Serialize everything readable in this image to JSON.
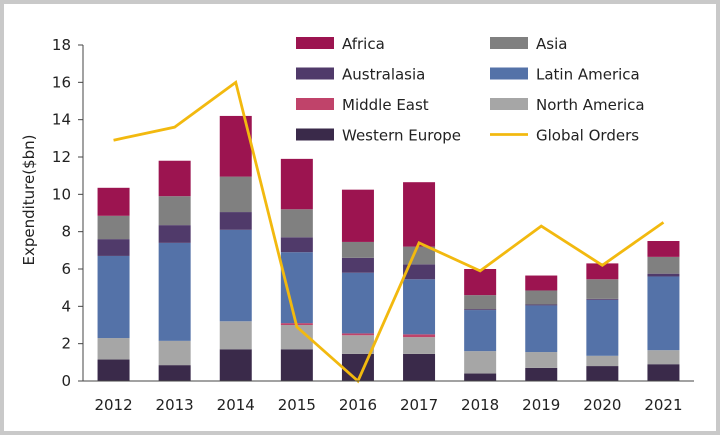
{
  "chart_data": {
    "type": "bar",
    "stacked": true,
    "title": "",
    "xlabel": "",
    "ylabel": "Expenditure($bn)",
    "ylim": [
      0,
      18
    ],
    "yticks": [
      0,
      2,
      4,
      6,
      8,
      10,
      12,
      14,
      16,
      18
    ],
    "grid": false,
    "legend_position": "top-right",
    "categories": [
      "2012",
      "2013",
      "2014",
      "2015",
      "2016",
      "2017",
      "2018",
      "2019",
      "2020",
      "2021"
    ],
    "series": [
      {
        "name": "Western Europe",
        "color": "#3a2a4a",
        "values": [
          1.15,
          0.85,
          1.7,
          1.7,
          1.45,
          1.45,
          0.4,
          0.7,
          0.8,
          0.9
        ]
      },
      {
        "name": "North America",
        "color": "#a6a6a6",
        "values": [
          1.15,
          1.3,
          1.5,
          1.3,
          1.0,
          0.9,
          1.2,
          0.85,
          0.55,
          0.75
        ]
      },
      {
        "name": "Middle East",
        "color": "#c0436a",
        "values": [
          0.0,
          0.0,
          0.0,
          0.1,
          0.1,
          0.15,
          0.0,
          0.0,
          0.0,
          0.0
        ]
      },
      {
        "name": "Latin America",
        "color": "#5472a8",
        "values": [
          4.4,
          5.25,
          4.9,
          3.8,
          3.25,
          2.95,
          2.2,
          2.5,
          3.0,
          3.95
        ]
      },
      {
        "name": "Australasia",
        "color": "#503a6a",
        "values": [
          0.9,
          0.95,
          0.95,
          0.8,
          0.8,
          0.8,
          0.05,
          0.05,
          0.05,
          0.15
        ]
      },
      {
        "name": "Asia",
        "color": "#808080",
        "values": [
          1.25,
          1.55,
          1.9,
          1.5,
          0.85,
          0.95,
          0.75,
          0.75,
          1.05,
          0.9
        ]
      },
      {
        "name": "Africa",
        "color": "#9c1450",
        "values": [
          1.5,
          1.9,
          3.25,
          2.7,
          2.8,
          3.45,
          1.4,
          0.8,
          0.85,
          0.85
        ]
      }
    ],
    "line_series": {
      "name": "Global Orders",
      "color": "#f2b90f",
      "values": [
        12.9,
        13.6,
        16.0,
        2.9,
        0.0,
        7.4,
        5.9,
        8.3,
        6.2,
        8.5
      ]
    }
  }
}
